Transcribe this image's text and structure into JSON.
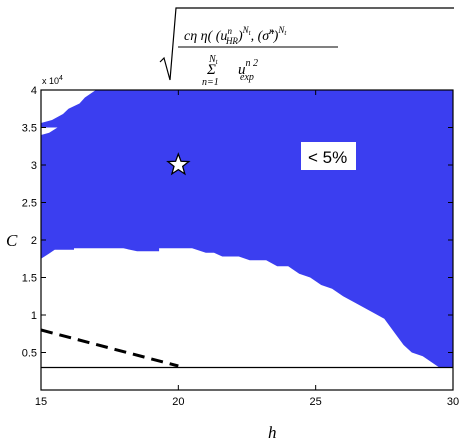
{
  "chart_data": {
    "type": "area",
    "title": "c_η η( (u_HR^n)^Nt , (σ̂^n)^Nt ) / Σ_{n=1}^{Nt} u_exp^n2",
    "title_parts": {
      "numerator": "cη η( (u",
      "hr": "HR",
      "n": "n",
      "nt": "N",
      "t": "t",
      "sigma": "(σ̂",
      "sum": "Σ",
      "sum_lower": "n=1",
      "u_exp": "u",
      "exp": "exp",
      "n2": "n 2"
    },
    "xlabel": "h",
    "ylabel": "C",
    "xlim": [
      15,
      30
    ],
    "ylim": [
      0,
      40000
    ],
    "y_multiplier": "x 10",
    "y_multiplier_exp": "4",
    "x_ticks": [
      15,
      20,
      25,
      30
    ],
    "y_ticks": [
      0.5,
      1,
      1.5,
      2,
      2.5,
      3,
      3.5,
      4
    ],
    "y_tick_labels": [
      "0.5",
      "1",
      "1.5",
      "2",
      "2.5",
      "3",
      "3.5",
      "4"
    ],
    "grid": false,
    "region_color": "#3b3ef0",
    "annotation": "< 5%",
    "region_upper_left_notch": [
      [
        15,
        40000
      ],
      [
        17,
        40000
      ],
      [
        16.6,
        39000
      ],
      [
        16.4,
        38200
      ],
      [
        16.0,
        37500
      ],
      [
        15.8,
        36800
      ],
      [
        15.4,
        36000
      ],
      [
        15.0,
        35600
      ]
    ],
    "region_left_notch": [
      [
        15,
        35000
      ],
      [
        15.6,
        35000
      ],
      [
        15.3,
        34300
      ],
      [
        15.0,
        34000
      ]
    ],
    "region_lower_boundary": [
      [
        15.0,
        17500
      ],
      [
        15.3,
        18200
      ],
      [
        15.5,
        18700
      ],
      [
        16.2,
        18700
      ],
      [
        16.2,
        18900
      ],
      [
        18.0,
        18900
      ],
      [
        18.5,
        18500
      ],
      [
        19.3,
        18500
      ],
      [
        19.3,
        18900
      ],
      [
        20.5,
        18900
      ],
      [
        21.0,
        18300
      ],
      [
        21.3,
        18300
      ],
      [
        21.6,
        17800
      ],
      [
        22.2,
        17800
      ],
      [
        22.6,
        17300
      ],
      [
        23.2,
        17300
      ],
      [
        23.6,
        16500
      ],
      [
        24.0,
        16500
      ],
      [
        24.4,
        15500
      ],
      [
        24.8,
        15000
      ],
      [
        25.2,
        14000
      ],
      [
        25.6,
        13500
      ],
      [
        26.0,
        12500
      ],
      [
        26.5,
        11500
      ],
      [
        27.0,
        10500
      ],
      [
        27.5,
        9500
      ],
      [
        27.9,
        7500
      ],
      [
        28.2,
        6000
      ],
      [
        28.5,
        5000
      ],
      [
        28.9,
        4500
      ],
      [
        29.5,
        3000
      ],
      [
        30.0,
        3000
      ]
    ],
    "region_bottom": 3000,
    "baseline_y": 3000,
    "dashed_line": [
      [
        15,
        8000
      ],
      [
        20,
        3200
      ]
    ],
    "star_point": [
      20,
      30000
    ]
  }
}
